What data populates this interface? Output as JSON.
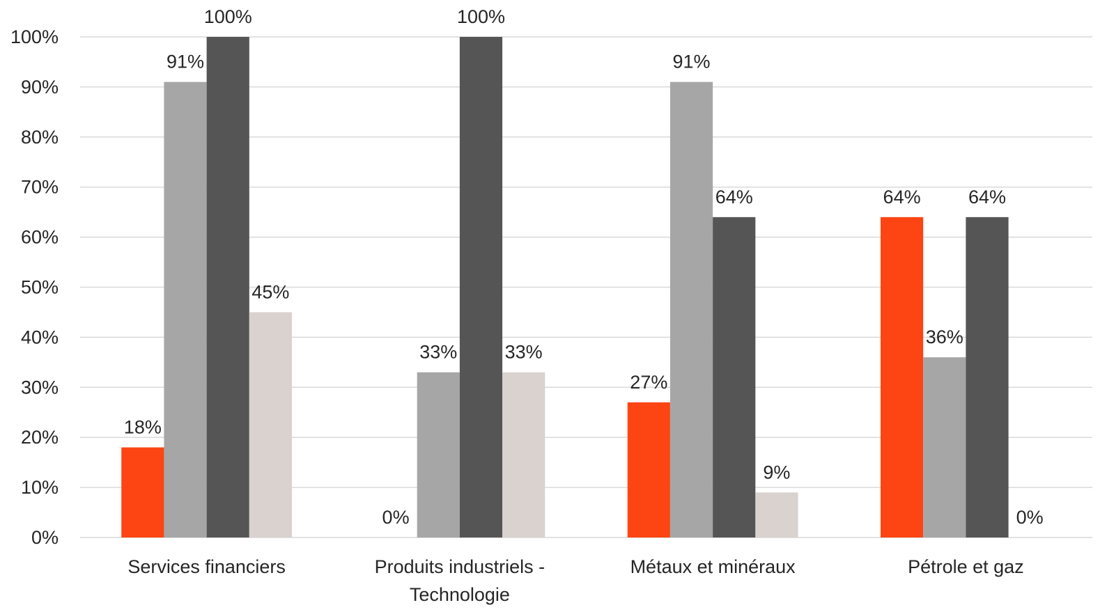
{
  "chart_data": {
    "type": "bar",
    "categories": [
      [
        "Services financiers"
      ],
      [
        "Produits industriels -",
        "Technologie"
      ],
      [
        "Métaux et minéraux"
      ],
      [
        "Pétrole et gaz"
      ]
    ],
    "series": [
      {
        "color": "#fc4513",
        "values": [
          18,
          0,
          27,
          64
        ],
        "labels": [
          "18%",
          "0%",
          "27%",
          "64%"
        ]
      },
      {
        "color": "#a6a6a6",
        "values": [
          91,
          33,
          91,
          36
        ],
        "labels": [
          "91%",
          "33%",
          "91%",
          "36%"
        ]
      },
      {
        "color": "#555555",
        "values": [
          100,
          100,
          64,
          64
        ],
        "labels": [
          "100%",
          "100%",
          "64%",
          "64%"
        ]
      },
      {
        "color": "#d9d2ce",
        "values": [
          45,
          33,
          9,
          0
        ],
        "labels": [
          "45%",
          "33%",
          "9%",
          "0%"
        ]
      }
    ],
    "ylim": [
      0,
      100
    ],
    "yticks": [
      "0%",
      "10%",
      "20%",
      "30%",
      "40%",
      "50%",
      "60%",
      "70%",
      "80%",
      "90%",
      "100%"
    ],
    "grid": true,
    "legend": "none"
  }
}
